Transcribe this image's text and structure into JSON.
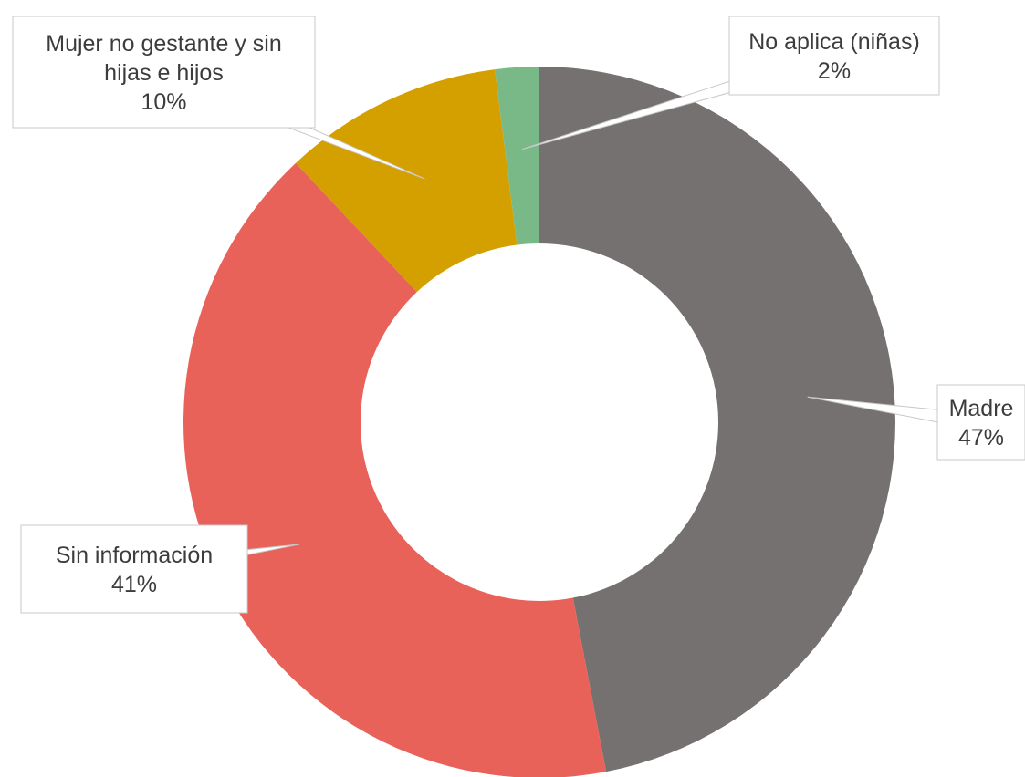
{
  "chart_data": {
    "type": "pie",
    "variant": "donut",
    "title": "",
    "slices": [
      {
        "label": "Madre",
        "value": 47,
        "display": "47%",
        "color": "#747170"
      },
      {
        "label": "Sin información",
        "value": 41,
        "display": "41%",
        "color": "#e8625a"
      },
      {
        "label": "Mujer no gestante y sin hijas e hijos",
        "label_lines": [
          "Mujer no gestante y sin",
          "hijas e hijos"
        ],
        "value": 10,
        "display": "10%",
        "color": "#d4a000"
      },
      {
        "label": "No aplica (niñas)",
        "value": 2,
        "display": "2%",
        "color": "#79b987"
      }
    ]
  }
}
